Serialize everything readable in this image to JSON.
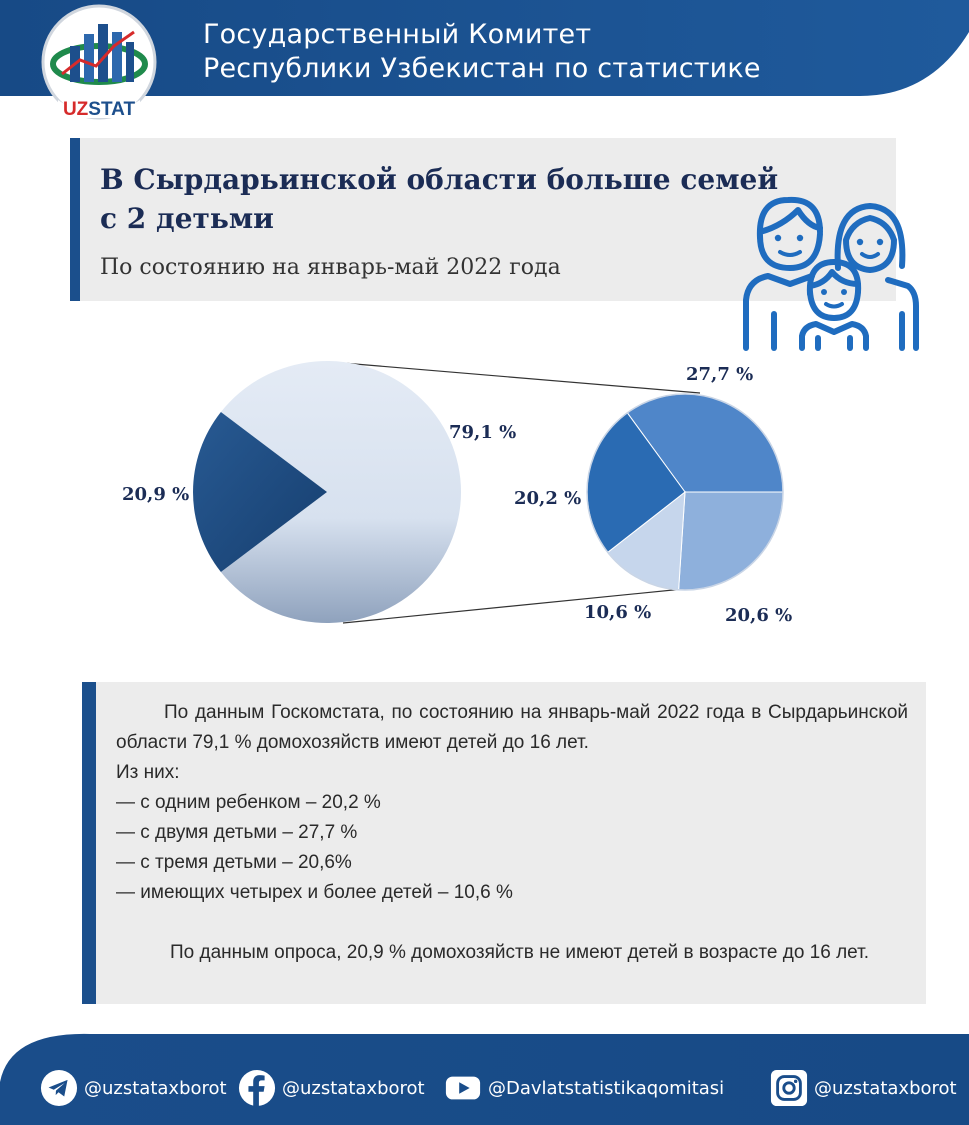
{
  "header": {
    "logo_text": "UZSTAT",
    "title_line1": "Государственный Комитет",
    "title_line2": "Республики Узбекистан по статистике"
  },
  "title": {
    "main": "В Сырдарьинской области больше семей с 2 детьми",
    "subtitle": "По состоянию на январь-май 2022 года"
  },
  "colors": {
    "brand_dark": "#1b4f8c",
    "header_blue": "#1d5696",
    "title_text": "#1b2c55"
  },
  "chart_data": {
    "type": "pie",
    "main_pie": {
      "slices": [
        {
          "value": 79.1,
          "label": "79,1 %",
          "color": "#dde6f2"
        },
        {
          "value": 20.9,
          "label": "20,9 %",
          "color": "#1e4d84"
        }
      ]
    },
    "breakdown_pie": {
      "slices": [
        {
          "value": 27.7,
          "label": "27,7 %",
          "color": "#4f86c9"
        },
        {
          "value": 20.6,
          "label": "20,6 %",
          "color": "#8eb0dc"
        },
        {
          "value": 10.6,
          "label": "10,6 %",
          "color": "#c6d6ec"
        },
        {
          "value": 20.2,
          "label": "20,2 %",
          "color": "#2a6bb3"
        }
      ]
    }
  },
  "body_text": {
    "para1": "По данным Госкомстата, по состоянию на январь-май 2022 года в Сырдарьинской области 79,1 % домохозяйств имеют детей до 16 лет.",
    "intro": "Из них:",
    "items": [
      "— с одним ребенком – 20,2 %",
      "— с двумя детьми – 27,7 %",
      "— с тремя детьми – 20,6%",
      "— имеющих четырех и более детей – 10,6 %"
    ],
    "para2": "По данным опроса, 20,9 % домохозяйств не имеют детей в возрасте до 16 лет."
  },
  "footer": {
    "telegram": "@uzstataxborot",
    "facebook": "@uzstataxborot",
    "youtube": "@Davlatstatistikaqomitasi",
    "instagram": "@uzstataxborot"
  }
}
